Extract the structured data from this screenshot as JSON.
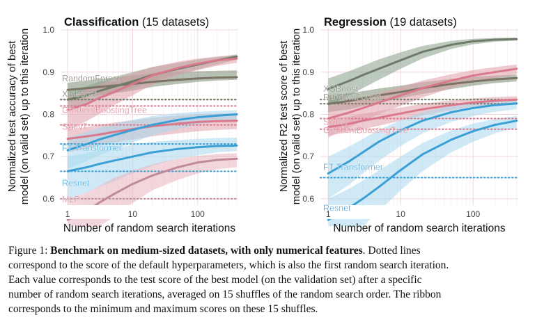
{
  "chart_data": [
    {
      "type": "line",
      "title": "Classification",
      "subtitle": "(15 datasets)",
      "xlabel": "Number of random search iterations",
      "ylabel": "Normalized test accuracy of best model (on valid set) up to this iteration",
      "ylabel_lines": [
        "Normalized test accuracy of best",
        "model (on valid set) up to this iteration"
      ],
      "x_scale": "log",
      "xlim": [
        0.78,
        420
      ],
      "ylim": [
        0.585,
        1.005
      ],
      "xticks": [
        1,
        10,
        100
      ],
      "xtick_labels": [
        "1",
        "10",
        "100"
      ],
      "yticks": [
        0.6,
        0.7,
        0.8,
        0.9,
        1.0
      ],
      "ytick_labels": [
        "0.6",
        "0.7",
        "0.8",
        "0.9",
        "1.0"
      ],
      "grid": true,
      "x": [
        1,
        2,
        3,
        5,
        10,
        20,
        50,
        100,
        200,
        400
      ],
      "series": [
        {
          "name": "RandomForest",
          "color": "#7a7464",
          "ribbon": "#7a8c74",
          "values": [
            0.858,
            0.862,
            0.865,
            0.868,
            0.872,
            0.877,
            0.882,
            0.885,
            0.887,
            0.888
          ],
          "lower": [
            0.83,
            0.84,
            0.845,
            0.85,
            0.856,
            0.865,
            0.872,
            0.877,
            0.88,
            0.882
          ],
          "upper": [
            0.875,
            0.88,
            0.884,
            0.887,
            0.892,
            0.897,
            0.9,
            0.902,
            0.903,
            0.904
          ],
          "default": 0.835,
          "label_y": 0.885
        },
        {
          "name": "XGBoost",
          "color": "#6e7b66",
          "ribbon": "#86a08a",
          "values": [
            0.835,
            0.845,
            0.855,
            0.865,
            0.878,
            0.893,
            0.908,
            0.918,
            0.928,
            0.937
          ],
          "lower": [
            0.81,
            0.825,
            0.835,
            0.848,
            0.862,
            0.878,
            0.895,
            0.906,
            0.918,
            0.93
          ],
          "upper": [
            0.855,
            0.867,
            0.877,
            0.888,
            0.9,
            0.912,
            0.922,
            0.93,
            0.936,
            0.942
          ],
          "default": 0.835,
          "label_y": 0.848
        },
        {
          "name": "GradientBoostingTree",
          "color": "#d8788a",
          "ribbon": "#e0a0ac",
          "values": [
            0.81,
            0.825,
            0.838,
            0.852,
            0.872,
            0.892,
            0.91,
            0.92,
            0.928,
            0.932
          ],
          "lower": [
            0.76,
            0.785,
            0.8,
            0.82,
            0.845,
            0.87,
            0.893,
            0.905,
            0.915,
            0.922
          ],
          "upper": [
            0.84,
            0.86,
            0.87,
            0.882,
            0.898,
            0.912,
            0.925,
            0.932,
            0.937,
            0.94
          ],
          "default": 0.82,
          "label_y": 0.81
        },
        {
          "name": "SAINT",
          "color": "#d8788a",
          "ribbon": "#e0a0ac",
          "values": [
            0.742,
            0.748,
            0.752,
            0.758,
            0.765,
            0.772,
            0.778,
            0.782,
            0.784,
            0.785
          ],
          "lower": [
            0.71,
            0.72,
            0.726,
            0.733,
            0.74,
            0.748,
            0.755,
            0.76,
            0.763,
            0.765
          ],
          "upper": [
            0.765,
            0.77,
            0.775,
            0.78,
            0.786,
            0.792,
            0.797,
            0.8,
            0.802,
            0.803
          ],
          "default": 0.775,
          "label_y": 0.77
        },
        {
          "name": "FT Transformer",
          "color": "#3a9fd4",
          "ribbon": "#a8d8ef",
          "values": [
            0.715,
            0.73,
            0.74,
            0.75,
            0.763,
            0.775,
            0.787,
            0.793,
            0.797,
            0.8
          ],
          "lower": [
            0.67,
            0.69,
            0.703,
            0.716,
            0.733,
            0.75,
            0.765,
            0.775,
            0.783,
            0.788
          ],
          "upper": [
            0.745,
            0.758,
            0.768,
            0.777,
            0.787,
            0.796,
            0.803,
            0.806,
            0.808,
            0.81
          ],
          "default": 0.73,
          "label_y": 0.72
        },
        {
          "name": "Resnet",
          "color": "#3a9fd4",
          "ribbon": "#a8d8ef",
          "values": [
            0.665,
            0.675,
            0.682,
            0.69,
            0.7,
            0.71,
            0.718,
            0.722,
            0.725,
            0.726
          ],
          "lower": [
            0.6,
            0.615,
            0.628,
            0.64,
            0.66,
            0.678,
            0.695,
            0.703,
            0.71,
            0.713
          ],
          "upper": [
            0.7,
            0.708,
            0.714,
            0.72,
            0.728,
            0.735,
            0.739,
            0.742,
            0.744,
            0.745
          ],
          "default": 0.665,
          "label_y": 0.637
        },
        {
          "name": "MLP",
          "color": "#c08a9a",
          "ribbon": "#e8b4c0",
          "values": [
            0.55,
            0.572,
            0.59,
            0.61,
            0.635,
            0.655,
            0.675,
            0.686,
            0.692,
            0.695
          ],
          "lower": [
            0.49,
            0.51,
            0.53,
            0.555,
            0.59,
            0.62,
            0.645,
            0.66,
            0.67,
            0.675
          ],
          "upper": [
            0.6,
            0.615,
            0.63,
            0.648,
            0.667,
            0.682,
            0.695,
            0.702,
            0.706,
            0.708
          ],
          "default": 0.6,
          "label_y": 0.598
        }
      ]
    },
    {
      "type": "line",
      "title": "Regression",
      "subtitle": "(19 datasets)",
      "xlabel": "Number of random search iterations",
      "ylabel": "Normalized R2 test score of best model (on valid set) up to this iteration",
      "ylabel_lines": [
        "Normalized R2 test score of best",
        "model (on valid set) up to this iteration"
      ],
      "x_scale": "log",
      "xlim": [
        0.78,
        420
      ],
      "ylim": [
        0.585,
        1.005
      ],
      "xticks": [
        1,
        10,
        100
      ],
      "xtick_labels": [
        "1",
        "10",
        "100"
      ],
      "yticks": [
        0.6,
        0.7,
        0.8,
        0.9,
        1.0
      ],
      "ytick_labels": [
        "0.6",
        "0.7",
        "0.8",
        "0.9",
        "1.0"
      ],
      "grid": true,
      "x": [
        1,
        2,
        3,
        5,
        10,
        20,
        50,
        100,
        200,
        400
      ],
      "series": [
        {
          "name": "XGBoost",
          "color": "#6e7b66",
          "ribbon": "#86a08a",
          "values": [
            0.86,
            0.88,
            0.893,
            0.908,
            0.928,
            0.948,
            0.965,
            0.973,
            0.977,
            0.978
          ],
          "lower": [
            0.82,
            0.845,
            0.862,
            0.882,
            0.908,
            0.932,
            0.955,
            0.966,
            0.972,
            0.975
          ],
          "upper": [
            0.885,
            0.903,
            0.915,
            0.93,
            0.947,
            0.962,
            0.974,
            0.979,
            0.981,
            0.982
          ],
          "default": 0.835,
          "label_y": 0.86
        },
        {
          "name": "RandomForest",
          "color": "#7a7464",
          "ribbon": "#7a8c74",
          "values": [
            0.825,
            0.832,
            0.838,
            0.845,
            0.853,
            0.862,
            0.872,
            0.878,
            0.883,
            0.886
          ],
          "lower": [
            0.805,
            0.812,
            0.82,
            0.828,
            0.838,
            0.848,
            0.86,
            0.868,
            0.874,
            0.878
          ],
          "upper": [
            0.845,
            0.85,
            0.855,
            0.861,
            0.868,
            0.876,
            0.884,
            0.889,
            0.892,
            0.894
          ],
          "default": 0.825,
          "label_y": 0.84
        },
        {
          "name": "SAINT",
          "color": "#d8788a",
          "ribbon": "#e0a0ac",
          "values": [
            0.79,
            0.805,
            0.815,
            0.828,
            0.845,
            0.862,
            0.88,
            0.892,
            0.9,
            0.908
          ],
          "lower": [
            0.745,
            0.77,
            0.785,
            0.8,
            0.82,
            0.84,
            0.862,
            0.876,
            0.886,
            0.895
          ],
          "upper": [
            0.82,
            0.832,
            0.84,
            0.85,
            0.865,
            0.88,
            0.895,
            0.905,
            0.912,
            0.918
          ],
          "default": 0.79,
          "label_y": 0.782
        },
        {
          "name": "GradientBoostingTree",
          "color": "#d8788a",
          "ribbon": "#e0a0ac",
          "values": [
            0.77,
            0.778,
            0.785,
            0.792,
            0.802,
            0.812,
            0.822,
            0.828,
            0.832,
            0.835
          ],
          "lower": [
            0.75,
            0.758,
            0.765,
            0.773,
            0.785,
            0.797,
            0.81,
            0.818,
            0.823,
            0.827
          ],
          "upper": [
            0.788,
            0.795,
            0.801,
            0.808,
            0.816,
            0.825,
            0.833,
            0.838,
            0.841,
            0.843
          ],
          "default": 0.765,
          "label_y": 0.762
        },
        {
          "name": "FT Transformer",
          "color": "#3a9fd4",
          "ribbon": "#a8d8ef",
          "values": [
            0.66,
            0.69,
            0.71,
            0.735,
            0.762,
            0.785,
            0.805,
            0.815,
            0.822,
            0.826
          ],
          "lower": [
            0.6,
            0.635,
            0.66,
            0.69,
            0.725,
            0.755,
            0.782,
            0.796,
            0.806,
            0.812
          ],
          "upper": [
            0.7,
            0.725,
            0.742,
            0.763,
            0.786,
            0.805,
            0.82,
            0.828,
            0.833,
            0.836
          ],
          "default": 0.65,
          "label_y": 0.675
        },
        {
          "name": "Resnet",
          "color": "#3a9fd4",
          "ribbon": "#a8d8ef",
          "values": [
            0.55,
            0.58,
            0.6,
            0.628,
            0.668,
            0.705,
            0.74,
            0.76,
            0.775,
            0.785
          ],
          "lower": [
            0.48,
            0.51,
            0.535,
            0.57,
            0.62,
            0.665,
            0.71,
            0.735,
            0.755,
            0.768
          ],
          "upper": [
            0.6,
            0.625,
            0.643,
            0.667,
            0.7,
            0.732,
            0.762,
            0.778,
            0.789,
            0.796
          ],
          "default": 0.65,
          "label_y": 0.578
        }
      ]
    }
  ],
  "caption": {
    "figure_label": "Figure 1:",
    "bold_text": "Benchmark on medium-sized datasets, with only numerical features",
    "lines": [
      "correspond to the score of the default hyperparameters, which is also the first random search iteration.",
      "Each value corresponds to the test score of the best model (on the validation set) after a specific",
      "number of random search iterations, averaged on 15 shuffles of the random search order. The ribbon",
      "corresponds to the minimum and maximum scores on these 15 shuffles."
    ],
    "first_line_tail": ". Dotted lines"
  }
}
